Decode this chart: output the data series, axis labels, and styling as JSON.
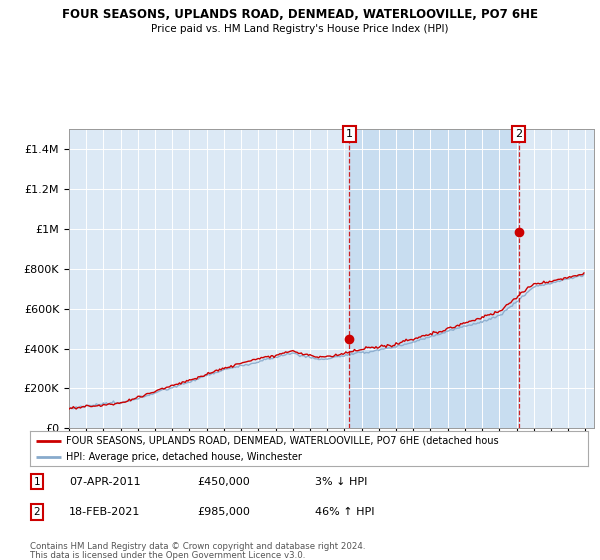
{
  "title": "FOUR SEASONS, UPLANDS ROAD, DENMEAD, WATERLOOVILLE, PO7 6HE",
  "subtitle": "Price paid vs. HM Land Registry's House Price Index (HPI)",
  "background_color": "#dce9f5",
  "plot_bg_color": "#dce9f5",
  "highlight_color": "#c8ddf0",
  "ylim": [
    0,
    1500000
  ],
  "yticks": [
    0,
    200000,
    400000,
    600000,
    800000,
    1000000,
    1200000,
    1400000
  ],
  "ytick_labels": [
    "£0",
    "£200K",
    "£400K",
    "£600K",
    "£800K",
    "£1M",
    "£1.2M",
    "£1.4M"
  ],
  "year_start": 1995,
  "year_end": 2025,
  "t1_year": 2011.29,
  "t1_price": 450000,
  "t2_year": 2021.12,
  "t2_price": 985000,
  "legend_line1": "FOUR SEASONS, UPLANDS ROAD, DENMEAD, WATERLOOVILLE, PO7 6HE (detached hous",
  "legend_line2": "HPI: Average price, detached house, Winchester",
  "footer1": "Contains HM Land Registry data © Crown copyright and database right 2024.",
  "footer2": "This data is licensed under the Open Government Licence v3.0.",
  "line_color_red": "#cc0000",
  "line_color_blue": "#88aacc",
  "vline_color": "#cc0000",
  "t1_date": "07-APR-2011",
  "t2_date": "18-FEB-2021",
  "t1_pct": "3% ↓ HPI",
  "t2_pct": "46% ↑ HPI"
}
